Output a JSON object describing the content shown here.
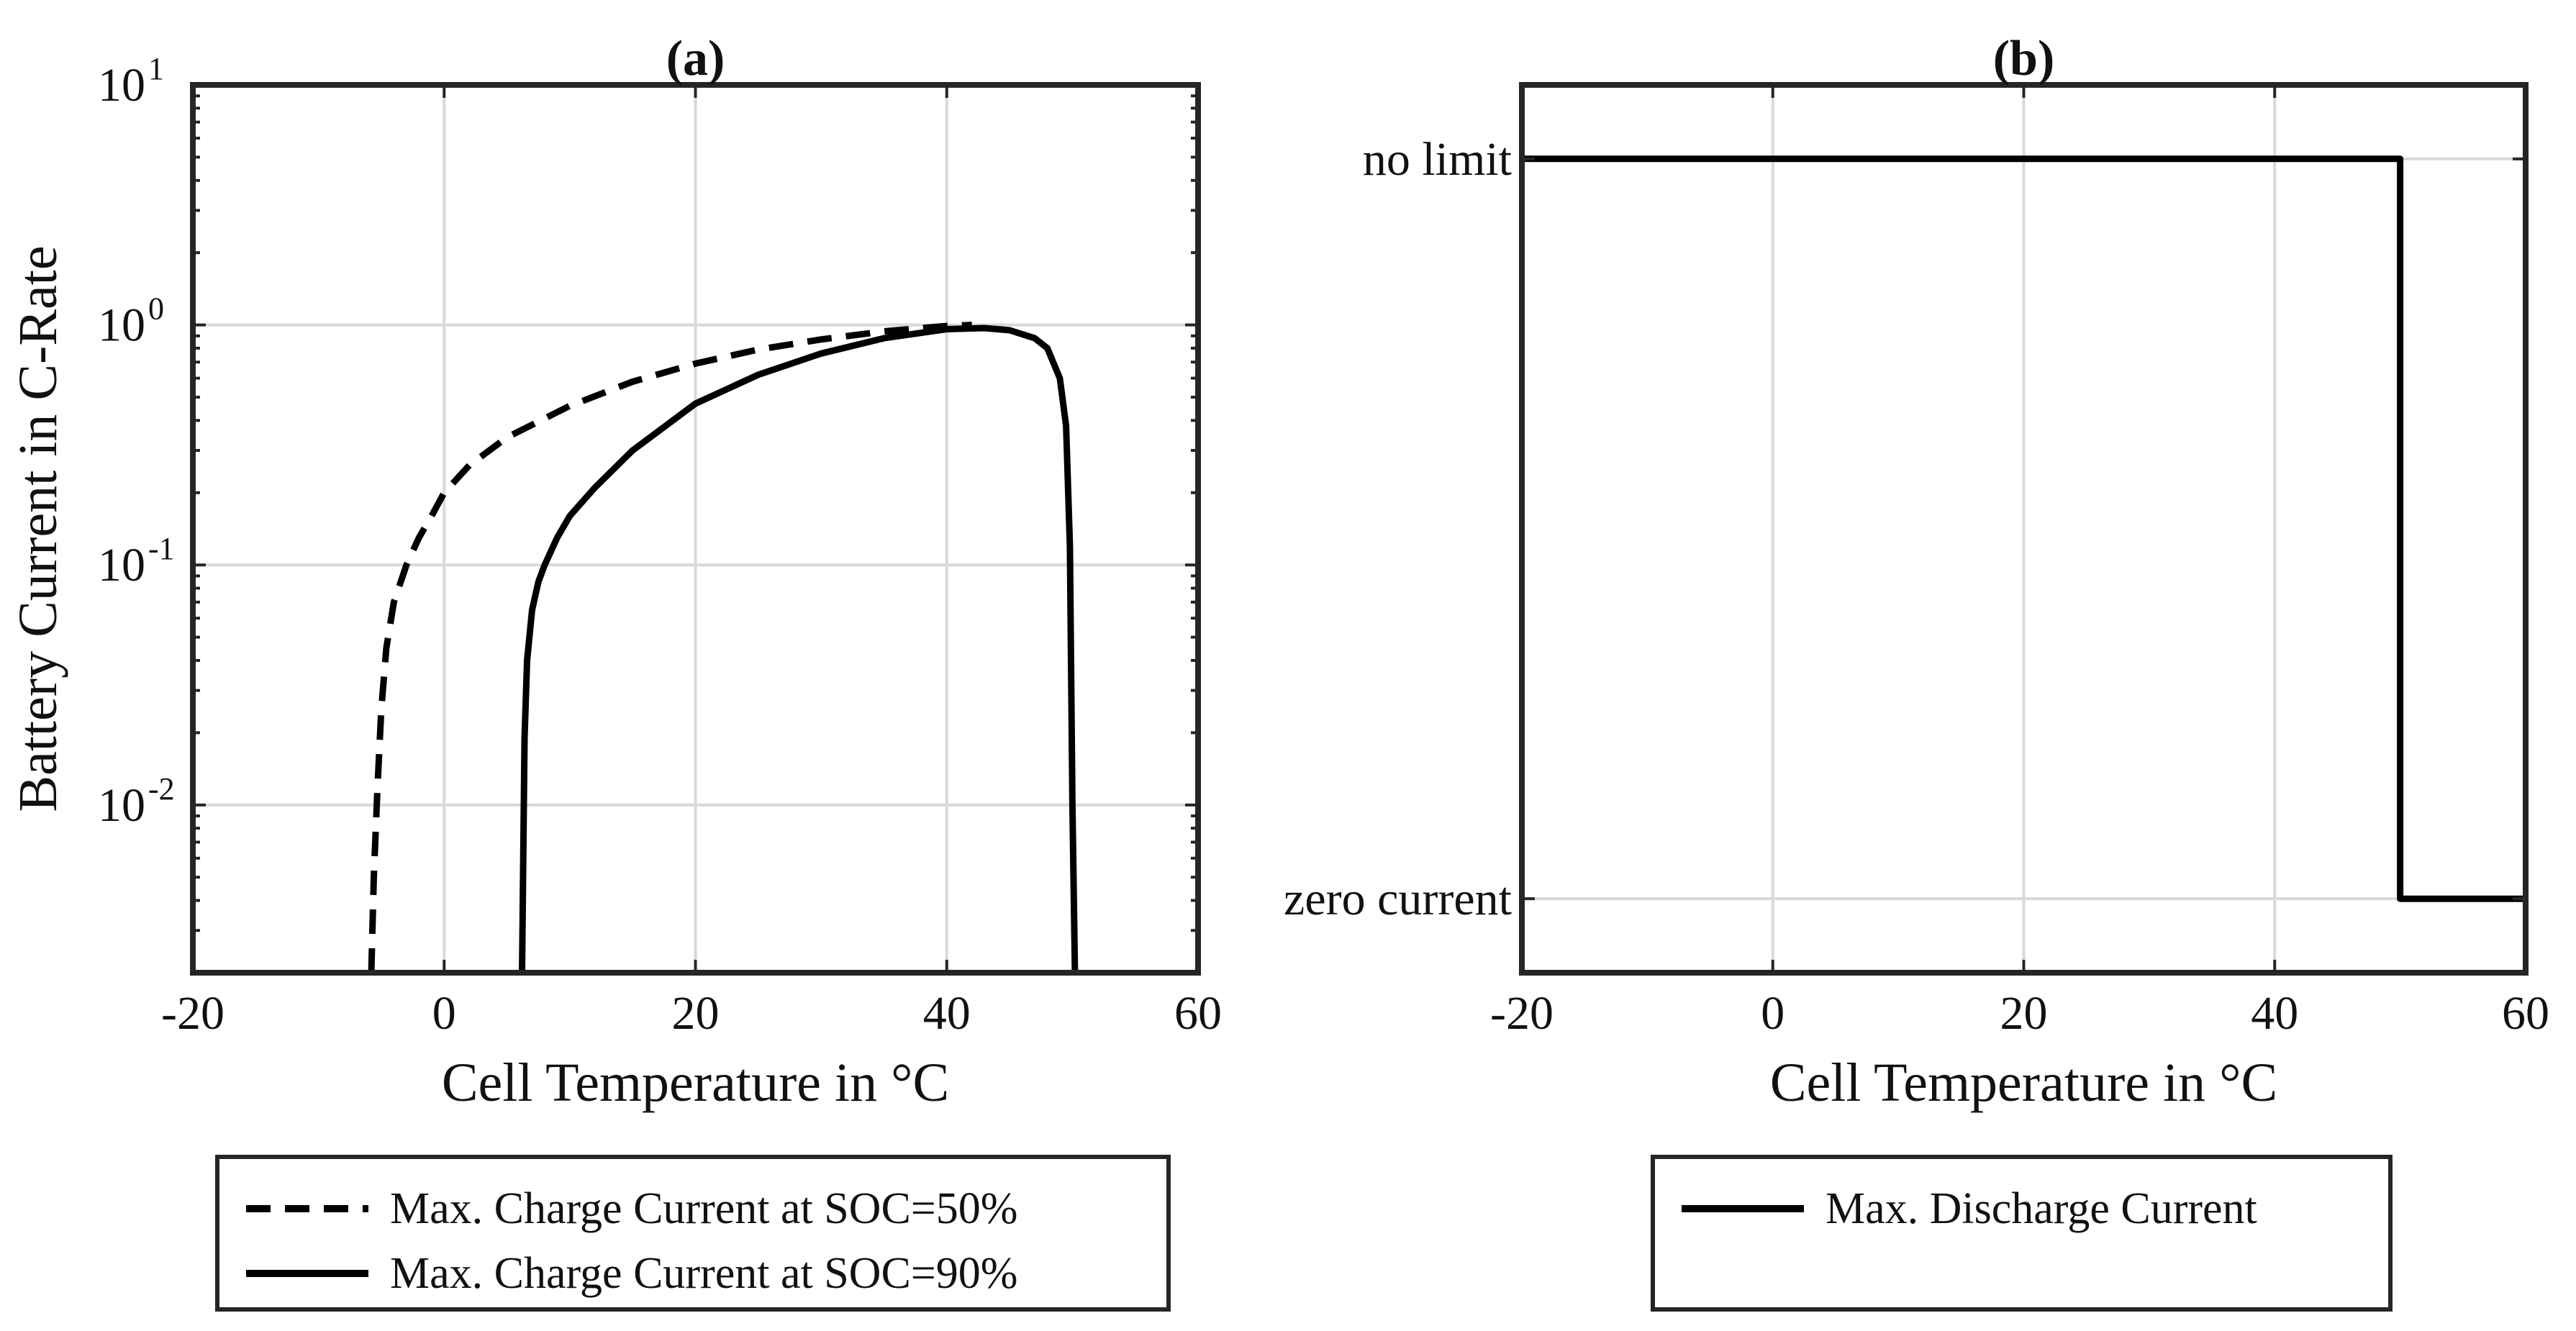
{
  "chart_data": [
    {
      "panel": "(a)",
      "type": "line",
      "title": "(a)",
      "xlabel": "Cell Temperature in °C",
      "ylabel": "Battery Current in C-Rate",
      "xlim": [
        -20,
        60
      ],
      "ylim": [
        0.002,
        10
      ],
      "yscale": "log",
      "grid": true,
      "xticks": [
        -20,
        0,
        20,
        40,
        60
      ],
      "xtick_labels": [
        "-20",
        "0",
        "20",
        "40",
        "60"
      ],
      "yticks": [
        0.01,
        0.1,
        1,
        10
      ],
      "ytick_labels": [
        {
          "base": "10",
          "exp": "-2"
        },
        {
          "base": "10",
          "exp": "-1"
        },
        {
          "base": "10",
          "exp": "0"
        },
        {
          "base": "10",
          "exp": "1"
        }
      ],
      "series": [
        {
          "name": "Max. Charge Current at SOC=50%",
          "style": "dashed",
          "color": "#000000",
          "x": [
            -5.8,
            -5.6,
            -5.3,
            -5.0,
            -4.6,
            -4.0,
            -3.0,
            -2.0,
            -1.0,
            0,
            2,
            5,
            10,
            15,
            20,
            25,
            30,
            35,
            40,
            42
          ],
          "y": [
            0.002,
            0.005,
            0.012,
            0.025,
            0.045,
            0.07,
            0.1,
            0.13,
            0.16,
            0.2,
            0.26,
            0.34,
            0.46,
            0.58,
            0.69,
            0.79,
            0.87,
            0.94,
            0.99,
            1.0
          ]
        },
        {
          "name": "Max. Charge Current at SOC=90%",
          "style": "solid",
          "color": "#000000",
          "x": [
            6.2,
            6.4,
            6.6,
            7.0,
            7.5,
            8,
            9,
            10,
            12,
            15,
            20,
            25,
            30,
            35,
            40,
            43,
            45,
            47,
            48,
            49,
            49.5,
            49.8,
            50,
            50.2
          ],
          "y": [
            0.002,
            0.019,
            0.04,
            0.065,
            0.085,
            0.1,
            0.13,
            0.16,
            0.21,
            0.3,
            0.47,
            0.62,
            0.76,
            0.88,
            0.96,
            0.97,
            0.95,
            0.88,
            0.8,
            0.6,
            0.38,
            0.12,
            0.01,
            0.002
          ]
        }
      ],
      "legend": {
        "position": "below",
        "entries": [
          "Max. Charge Current at SOC=50%",
          "Max. Charge Current at SOC=90%"
        ]
      }
    },
    {
      "panel": "(b)",
      "type": "line",
      "title": "(b)",
      "xlabel": "Cell Temperature in °C",
      "ylabel": "",
      "xlim": [
        -20,
        60
      ],
      "ylim": [
        -0.1,
        1.1
      ],
      "grid": true,
      "xticks": [
        -20,
        0,
        20,
        40,
        60
      ],
      "xtick_labels": [
        "-20",
        "0",
        "20",
        "40",
        "60"
      ],
      "yticks": [
        0,
        1
      ],
      "ytick_labels": [
        "zero current",
        "no limit"
      ],
      "series": [
        {
          "name": "Max. Discharge Current",
          "style": "solid",
          "color": "#000000",
          "x": [
            -20,
            50,
            50,
            60
          ],
          "y": [
            1,
            1,
            0,
            0
          ]
        }
      ],
      "legend": {
        "position": "below",
        "entries": [
          "Max. Discharge Current"
        ]
      }
    }
  ]
}
